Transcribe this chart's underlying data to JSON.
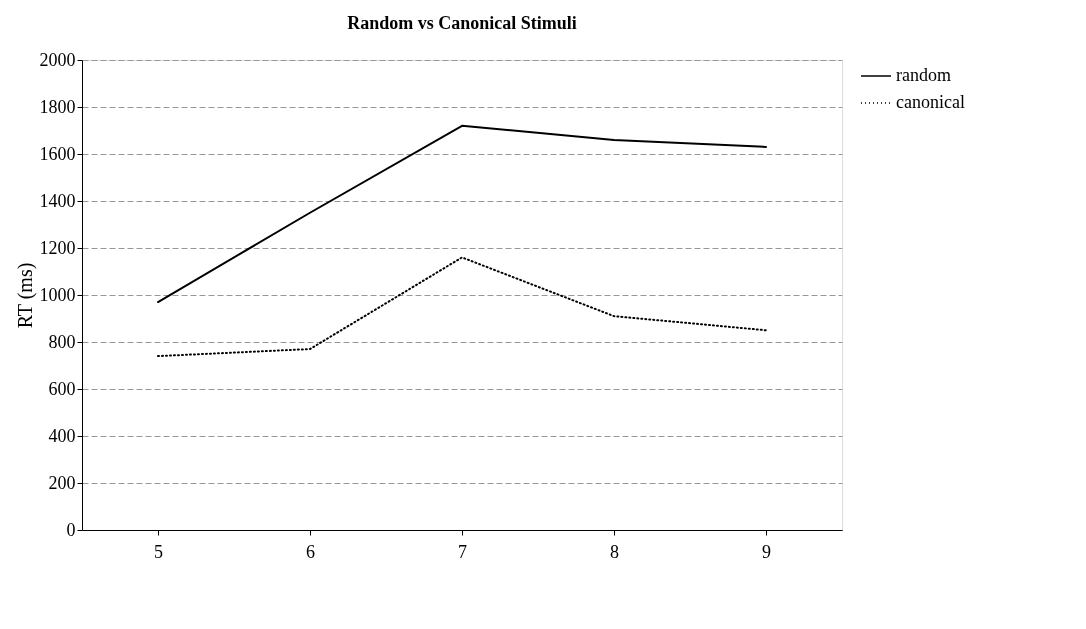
{
  "chart_data": {
    "type": "line",
    "title": "Random vs Canonical Stimuli",
    "ylabel": "RT (ms)",
    "categories": [
      "5",
      "6",
      "7",
      "8",
      "9"
    ],
    "series": [
      {
        "name": "random",
        "color": "#000000",
        "line_style": "solid",
        "values": [
          970,
          1350,
          1720,
          1660,
          1630
        ]
      },
      {
        "name": "canonical",
        "color": "#000000",
        "line_style": "dotted",
        "values": [
          740,
          770,
          1160,
          910,
          850
        ]
      }
    ],
    "ylim": [
      0,
      2000
    ],
    "yticks": [
      0,
      200,
      400,
      600,
      800,
      1000,
      1200,
      1400,
      1600,
      1800,
      2000
    ],
    "grid": "y",
    "legend": "right",
    "marker": "none"
  }
}
